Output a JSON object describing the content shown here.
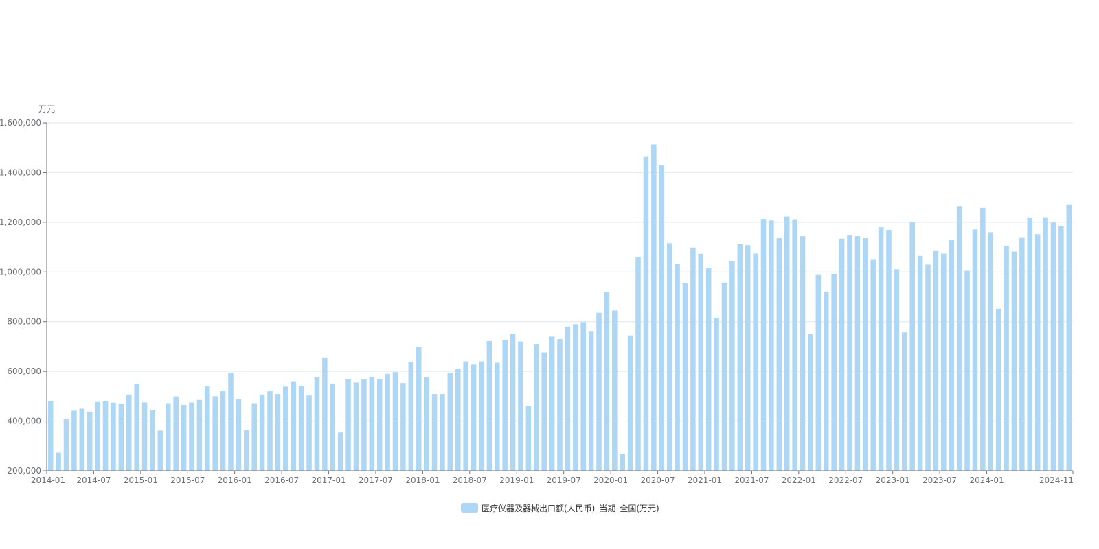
{
  "chart_data": {
    "type": "bar",
    "y_unit": "万元",
    "ylim": [
      200000,
      1600000
    ],
    "y_ticks": [
      200000,
      400000,
      600000,
      800000,
      1000000,
      1200000,
      1400000,
      1600000
    ],
    "y_tick_labels": [
      "200,000",
      "400,000",
      "600,000",
      "800,000",
      "1,000,000",
      "1,200,000",
      "1,400,000",
      "1,600,000"
    ],
    "x_tick_labels": [
      "2014-01",
      "2014-07",
      "2015-01",
      "2015-07",
      "2016-01",
      "2016-07",
      "2017-01",
      "2017-07",
      "2018-01",
      "2018-07",
      "2019-01",
      "2019-07",
      "2020-01",
      "2020-07",
      "2021-01",
      "2021-07",
      "2022-01",
      "2022-07",
      "2023-01",
      "2023-07",
      "2024-01",
      "2024-11"
    ],
    "grid": true,
    "legend_position": "bottom-center",
    "bar_color": "#aed6f5",
    "series": [
      {
        "name": "医疗仪器及器械出口额(人民币)_当期_全国(万元)",
        "categories": [
          "2014-01",
          "2014-02",
          "2014-03",
          "2014-04",
          "2014-05",
          "2014-06",
          "2014-07",
          "2014-08",
          "2014-09",
          "2014-10",
          "2014-11",
          "2014-12",
          "2015-01",
          "2015-02",
          "2015-03",
          "2015-04",
          "2015-05",
          "2015-06",
          "2015-07",
          "2015-08",
          "2015-09",
          "2015-10",
          "2015-11",
          "2015-12",
          "2016-01",
          "2016-02",
          "2016-03",
          "2016-04",
          "2016-05",
          "2016-06",
          "2016-07",
          "2016-08",
          "2016-09",
          "2016-10",
          "2016-11",
          "2016-12",
          "2017-01",
          "2017-02",
          "2017-03",
          "2017-04",
          "2017-05",
          "2017-06",
          "2017-07",
          "2017-08",
          "2017-09",
          "2017-10",
          "2017-11",
          "2017-12",
          "2018-01",
          "2018-02",
          "2018-03",
          "2018-04",
          "2018-05",
          "2018-06",
          "2018-07",
          "2018-08",
          "2018-09",
          "2018-10",
          "2018-11",
          "2018-12",
          "2019-01",
          "2019-02",
          "2019-03",
          "2019-04",
          "2019-05",
          "2019-06",
          "2019-07",
          "2019-08",
          "2019-09",
          "2019-10",
          "2019-11",
          "2019-12",
          "2020-01",
          "2020-02",
          "2020-03",
          "2020-04",
          "2020-05",
          "2020-06",
          "2020-07",
          "2020-08",
          "2020-09",
          "2020-10",
          "2020-11",
          "2020-12",
          "2021-01",
          "2021-02",
          "2021-03",
          "2021-04",
          "2021-05",
          "2021-06",
          "2021-07",
          "2021-08",
          "2021-09",
          "2021-10",
          "2021-11",
          "2021-12",
          "2022-01",
          "2022-02",
          "2022-03",
          "2022-04",
          "2022-05",
          "2022-06",
          "2022-07",
          "2022-08",
          "2022-09",
          "2022-10",
          "2022-11",
          "2022-12",
          "2023-01",
          "2023-02",
          "2023-03",
          "2023-04",
          "2023-05",
          "2023-06",
          "2023-07",
          "2023-08",
          "2023-09",
          "2023-10",
          "2023-11",
          "2023-12",
          "2024-01",
          "2024-02",
          "2024-03",
          "2024-04",
          "2024-05",
          "2024-06",
          "2024-07",
          "2024-08",
          "2024-09",
          "2024-10",
          "2024-11"
        ],
        "values": [
          480000,
          273000,
          408000,
          442000,
          450000,
          438000,
          477000,
          480000,
          474000,
          470000,
          507000,
          550000,
          475000,
          445000,
          362000,
          472000,
          499000,
          465000,
          475000,
          485000,
          539000,
          500000,
          520000,
          593000,
          489000,
          363000,
          472000,
          507000,
          520000,
          509000,
          539000,
          560000,
          541000,
          503000,
          576000,
          655000,
          551000,
          354000,
          570000,
          555000,
          568000,
          576000,
          570000,
          590000,
          597000,
          553000,
          639000,
          698000,
          576000,
          509000,
          509000,
          594000,
          610000,
          640000,
          627000,
          640000,
          722000,
          635000,
          727000,
          751000,
          720000,
          460000,
          708000,
          676000,
          740000,
          730000,
          780000,
          790000,
          798000,
          760000,
          836000,
          920000,
          845000,
          268000,
          745000,
          1060000,
          1463000,
          1513000,
          1431000,
          1116000,
          1034000,
          954000,
          1098000,
          1073000,
          1015000,
          815000,
          957000,
          1044000,
          1112000,
          1108000,
          1074000,
          1213000,
          1207000,
          1136000,
          1223000,
          1212000,
          1144000,
          750000,
          988000,
          921000,
          991000,
          1134000,
          1147000,
          1144000,
          1136000,
          1049000,
          1180000,
          1169000,
          1011000,
          757000,
          1200000,
          1065000,
          1030000,
          1084000,
          1074000,
          1128000,
          1265000,
          1005000,
          1171000,
          1258000,
          1160000,
          852000,
          1106000,
          1082000,
          1137000,
          1219000,
          1152000,
          1220000,
          1199000,
          1184000,
          1272000
        ]
      }
    ]
  }
}
